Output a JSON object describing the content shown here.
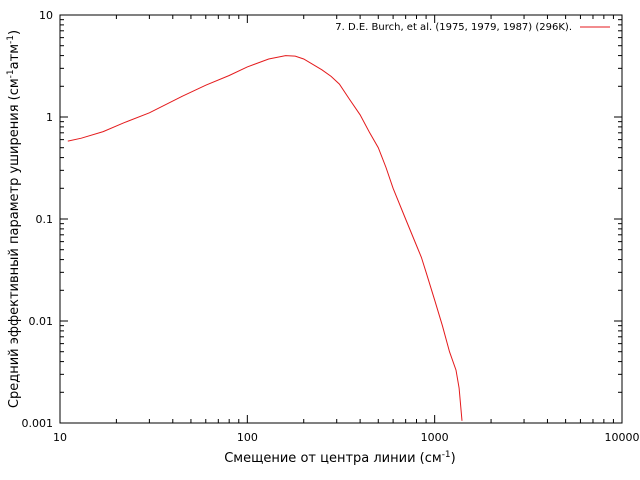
{
  "chart_data": {
    "type": "line",
    "title": "",
    "xlabel": "Смещение от центра линии (см",
    "xlabel_sup": "-1",
    "xlabel_close": ")",
    "ylabel": "Средний эффективный параметр уширения (см",
    "ylabel_sup1": "-1",
    "ylabel_mid": "атм",
    "ylabel_sup2": "-1",
    "ylabel_close": ")",
    "xscale": "log",
    "yscale": "log",
    "xlim": [
      10,
      10000
    ],
    "ylim": [
      0.001,
      10
    ],
    "grid": false,
    "legend_position": "top-right",
    "x_ticks": [
      {
        "value": 10,
        "label": "10"
      },
      {
        "value": 100,
        "label": "100"
      },
      {
        "value": 1000,
        "label": "1000"
      },
      {
        "value": 10000,
        "label": "10000"
      }
    ],
    "y_ticks": [
      {
        "value": 0.001,
        "label": "0.001"
      },
      {
        "value": 0.01,
        "label": "0.01"
      },
      {
        "value": 0.1,
        "label": "0.1"
      },
      {
        "value": 1,
        "label": "1"
      },
      {
        "value": 10,
        "label": "10"
      }
    ],
    "series": [
      {
        "name": "7.  D.E. Burch, et al. (1975, 1979, 1987) (296K).",
        "color": "#e41a1c",
        "x": [
          11,
          13,
          17,
          22,
          30,
          45,
          60,
          80,
          100,
          130,
          160,
          180,
          200,
          250,
          280,
          310,
          350,
          400,
          450,
          500,
          550,
          600,
          700,
          800,
          850,
          900,
          1000,
          1100,
          1200,
          1300,
          1350,
          1400
        ],
        "y": [
          0.58,
          0.62,
          0.72,
          0.88,
          1.1,
          1.6,
          2.05,
          2.55,
          3.1,
          3.7,
          4.0,
          3.95,
          3.7,
          2.9,
          2.5,
          2.1,
          1.5,
          1.05,
          0.7,
          0.5,
          0.32,
          0.2,
          0.1,
          0.055,
          0.042,
          0.03,
          0.016,
          0.009,
          0.005,
          0.0033,
          0.0022,
          0.00105
        ]
      }
    ]
  }
}
